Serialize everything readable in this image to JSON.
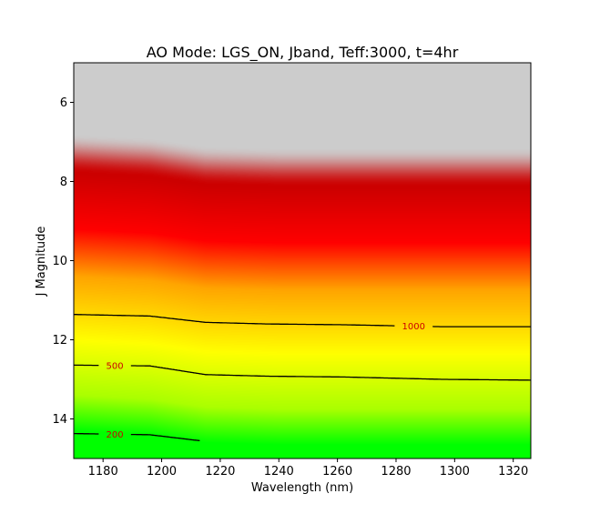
{
  "chart_data": {
    "type": "heatmap",
    "title": "AO Mode: LGS_ON, Jband, Teff:3000, t=4hr",
    "xlabel": "Wavelength (nm)",
    "ylabel": "J Magnitude",
    "xlim": [
      1170,
      1326
    ],
    "ylim": [
      15.0,
      5.0
    ],
    "y_inverted": true,
    "x_ticks": [
      1180,
      1200,
      1220,
      1240,
      1260,
      1280,
      1300,
      1320
    ],
    "y_ticks": [
      6,
      8,
      10,
      12,
      14
    ],
    "x_tick_labels": [
      "1180",
      "1200",
      "1220",
      "1240",
      "1260",
      "1280",
      "1300",
      "1320"
    ],
    "y_tick_labels": [
      "6",
      "8",
      "10",
      "12",
      "14"
    ],
    "colormap": {
      "saturated_color": "#cccccc",
      "stops": [
        {
          "magnitude_offset": 0.0,
          "color": "#cc0000"
        },
        {
          "magnitude_offset": 1.4,
          "color": "#ff0000"
        },
        {
          "magnitude_offset": 2.6,
          "color": "#ffa500"
        },
        {
          "magnitude_offset": 4.2,
          "color": "#ffff00"
        },
        {
          "magnitude_offset": 5.6,
          "color": "#aaff00"
        },
        {
          "magnitude_offset": 6.5,
          "color": "#00ff00"
        }
      ]
    },
    "saturation_boundary": {
      "x": [
        1170,
        1196,
        1215,
        1240,
        1280,
        1326
      ],
      "y": [
        6.9,
        7.0,
        7.2,
        7.25,
        7.25,
        7.25
      ]
    },
    "contours": [
      {
        "level_label": "1000",
        "label_color": "#cc0000",
        "label_x": 1286,
        "x": [
          1170,
          1196,
          1215,
          1236,
          1262,
          1296,
          1326
        ],
        "y": [
          11.36,
          11.4,
          11.56,
          11.6,
          11.62,
          11.67,
          11.67
        ]
      },
      {
        "level_label": "500",
        "label_color": "#cc0000",
        "label_x": 1184,
        "x": [
          1170,
          1196,
          1215,
          1236,
          1262,
          1296,
          1326
        ],
        "y": [
          12.64,
          12.66,
          12.88,
          12.92,
          12.94,
          13.0,
          13.02
        ]
      },
      {
        "level_label": "200",
        "label_color": "#cc0000",
        "label_x": 1184,
        "x": [
          1170,
          1196,
          1213
        ],
        "y": [
          14.37,
          14.4,
          14.55
        ]
      }
    ],
    "grid": false
  }
}
